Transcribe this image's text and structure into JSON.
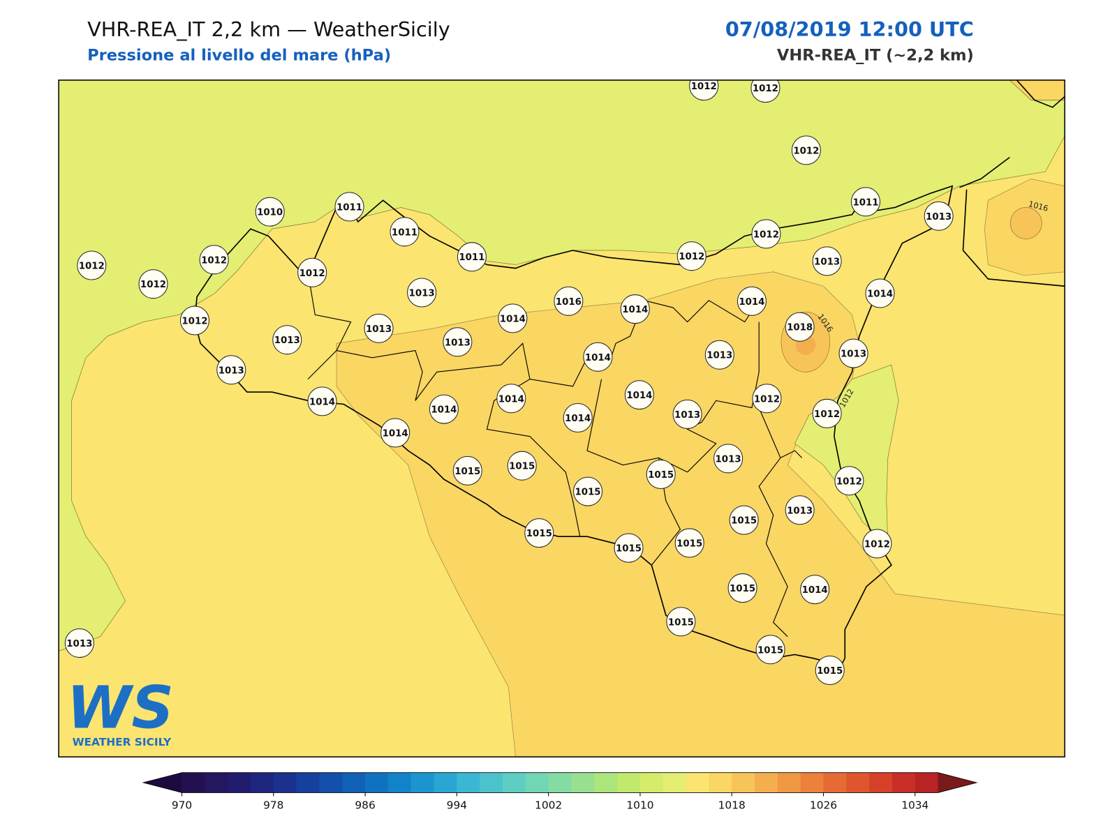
{
  "header": {
    "title": "VHR-REA_IT 2,2 km — WeatherSicily",
    "subtitle": "Pressione al livello del mare (hPa)",
    "date": "07/08/2019 12:00 UTC",
    "model": "VHR-REA_IT (~2,2 km)"
  },
  "stations": [
    1012,
    1012,
    1012,
    1011,
    1013,
    1010,
    1011,
    1011,
    1012,
    1012,
    1012,
    1012,
    1011,
    1013,
    1012,
    1012,
    1013,
    1014,
    1012,
    1013,
    1013,
    1013,
    1014,
    1016,
    1014,
    1014,
    1018,
    1013,
    1014,
    1013,
    1013,
    1014,
    1014,
    1014,
    1014,
    1014,
    1013,
    1012,
    1012,
    1014,
    1013,
    1015,
    1015,
    1015,
    1015,
    1012,
    1015,
    1013,
    1015,
    1015,
    1015,
    1012,
    1015,
    1014,
    1015,
    1015,
    1015,
    1013
  ],
  "contour_labels": [
    1016,
    1016,
    1012
  ],
  "logo": {
    "mark": "WS",
    "name": "WEATHER SICILY"
  },
  "colorbar": {
    "clim": [
      970,
      1036
    ],
    "ticks": [
      970,
      978,
      986,
      994,
      1002,
      1010,
      1018,
      1026,
      1034
    ],
    "colors": [
      "#23104f",
      "#251660",
      "#221c6f",
      "#1e257f",
      "#1a318d",
      "#16409d",
      "#1350ab",
      "#1161b6",
      "#0f72c0",
      "#1283c9",
      "#1c95cf",
      "#2aa6d3",
      "#3bb7d3",
      "#4cc3cc",
      "#5ecec2",
      "#70d6b4",
      "#84dca3",
      "#98e08f",
      "#ace57c",
      "#c1e96c",
      "#d4ec69",
      "#e3ee72",
      "#fbe470",
      "#fad663",
      "#f7c459",
      "#f4ae4e",
      "#f09843",
      "#ec813a",
      "#e66b32",
      "#df552d",
      "#d64129",
      "#c92e27",
      "#b82325"
    ],
    "under_color": "#1d0b3f",
    "over_color": "#7a1a1a"
  }
}
